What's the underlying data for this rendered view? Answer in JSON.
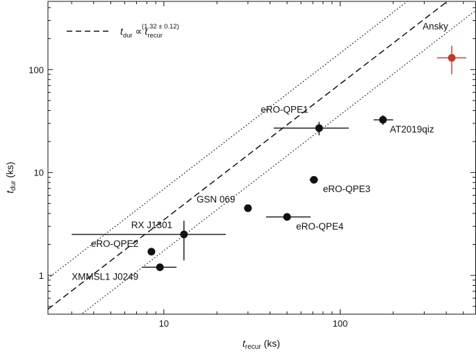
{
  "chart_data": {
    "type": "scatter",
    "xscale": "log",
    "yscale": "log",
    "xlim": [
      2.2,
      590
    ],
    "ylim": [
      0.42,
      460
    ],
    "x_major_ticks": [
      10,
      100
    ],
    "y_major_ticks": [
      1,
      10,
      100
    ],
    "x_tick_labels": [
      "10",
      "100"
    ],
    "y_tick_labels": [
      "1",
      "10",
      "100"
    ],
    "xlabel": {
      "symbol": "t",
      "sub": "recur",
      "unit": "(ks)"
    },
    "ylabel": {
      "symbol": "t",
      "sub": "dur",
      "unit": "(ks)"
    },
    "legend": {
      "position": "top-left",
      "symbol": "t",
      "sub": "dur",
      "rel": " ∝ ",
      "symbol2": "t",
      "sub2": "recur",
      "exponent": "(1.32 ± 0.12)"
    },
    "fit": {
      "slope": 1.32,
      "intercept": -0.78,
      "scatter_dex": 0.3
    },
    "colors": {
      "default": "#111111",
      "highlight": "#c0392b"
    },
    "points": [
      {
        "name": "Ansky",
        "x": 430,
        "y": 130,
        "xerr": [
          355,
          520
        ],
        "yerr": [
          90,
          170
        ],
        "highlight": true
      },
      {
        "name": "eRO-QPE1",
        "x": 76,
        "y": 27,
        "xerr": [
          42,
          112
        ],
        "yerr": [
          23,
          31
        ],
        "highlight": false
      },
      {
        "name": "AT2019qiz",
        "x": 175,
        "y": 32.5,
        "xerr": [
          155,
          200
        ],
        "yerr": [
          29,
          36
        ],
        "highlight": false
      },
      {
        "name": "eRO-QPE3",
        "x": 71,
        "y": 8.5,
        "xerr": [
          67,
          75
        ],
        "yerr": [
          8.2,
          8.8
        ],
        "highlight": false
      },
      {
        "name": "GSN 069",
        "x": 30,
        "y": 4.5,
        "xerr": [
          28.5,
          31.5
        ],
        "yerr": [
          4.3,
          4.7
        ],
        "highlight": false
      },
      {
        "name": "eRO-QPE4",
        "x": 50,
        "y": 3.7,
        "xerr": [
          38,
          68
        ],
        "yerr": [
          3.4,
          4.0
        ],
        "highlight": false
      },
      {
        "name": "RX J1301",
        "x": 13,
        "y": 2.5,
        "xerr": [
          3,
          22.5
        ],
        "yerr": [
          1.4,
          3.4
        ],
        "highlight": false
      },
      {
        "name": "eRO-QPE2",
        "x": 8.5,
        "y": 1.7,
        "xerr": [
          8.2,
          8.8
        ],
        "yerr": [
          1.62,
          1.78
        ],
        "highlight": false
      },
      {
        "name": "XMMSL1 J0249",
        "x": 9.5,
        "y": 1.2,
        "xerr": [
          7.5,
          11.8
        ],
        "yerr": [
          1.14,
          1.26
        ],
        "highlight": false
      }
    ]
  }
}
